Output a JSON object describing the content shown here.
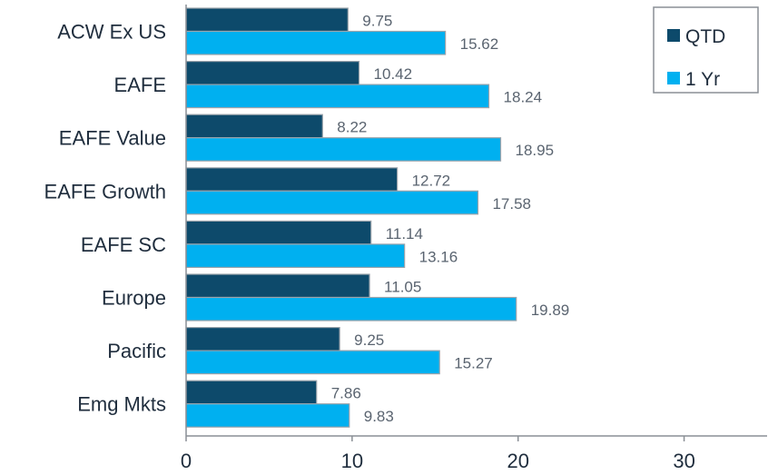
{
  "chart_data": {
    "type": "bar",
    "orientation": "horizontal",
    "categories": [
      "ACW Ex US",
      "EAFE",
      "EAFE Value",
      "EAFE Growth",
      "EAFE SC",
      "Europe",
      "Pacific",
      "Emg Mkts"
    ],
    "series": [
      {
        "name": "QTD",
        "values": [
          9.75,
          10.42,
          8.22,
          12.72,
          11.14,
          11.05,
          9.25,
          7.86
        ],
        "color": "#0d4a6b"
      },
      {
        "name": "1 Yr",
        "values": [
          15.62,
          18.24,
          18.95,
          17.58,
          13.16,
          19.89,
          15.27,
          9.83
        ],
        "color": "#00b0f0"
      }
    ],
    "xlim": [
      0,
      35
    ],
    "xticks": [
      0,
      10,
      20,
      30
    ],
    "tick_labels": [
      "0",
      "10",
      "20",
      "30"
    ],
    "title": "",
    "xlabel": "",
    "ylabel": "",
    "grid": false,
    "legend_position": "top-right",
    "bar_outline_color": "#9aa3ab"
  }
}
